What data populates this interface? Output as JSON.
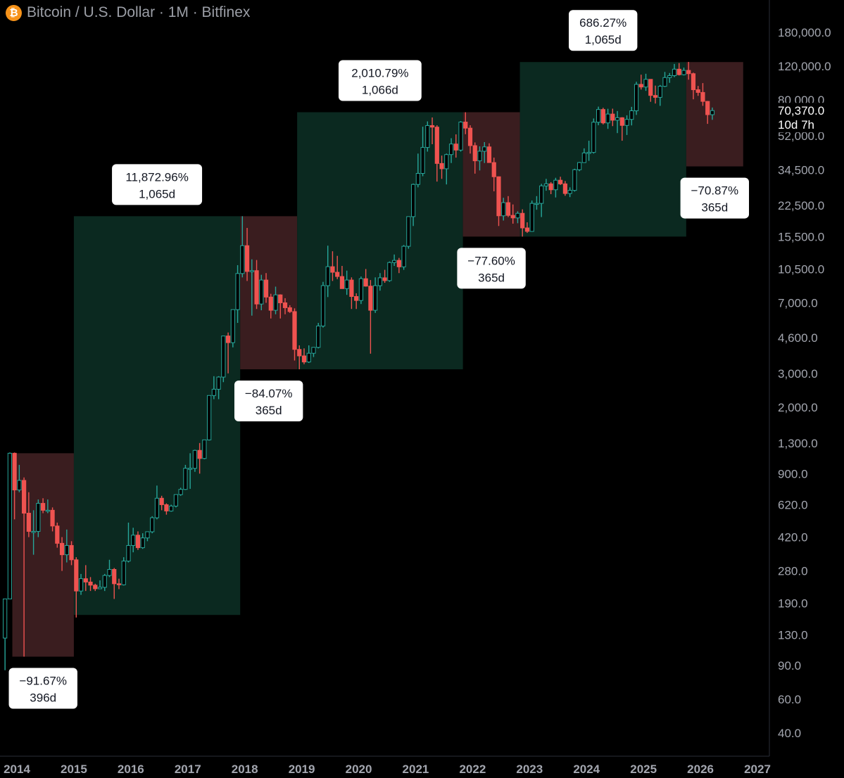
{
  "header": {
    "logo_icon": "bitcoin-logo-icon",
    "logo_glyph": "₿",
    "title": "Bitcoin / U.S. Dollar · 1M · Bitfinex"
  },
  "price_label": {
    "price": "70,370.0",
    "countdown": "10d 7h",
    "color": "#26a69a"
  },
  "colors": {
    "up": "#26a69a",
    "down": "#ef5350",
    "bull_zone": "#0b2920",
    "bear_zone": "#3a1d1f",
    "axis_text": "#a3a6af",
    "axis_line": "#2a2e39"
  },
  "chart_data": {
    "type": "candlestick",
    "scale": "log",
    "title": "Bitcoin / U.S. Dollar · 1M · Bitfinex",
    "x_range": [
      2014.0,
      2027.0
    ],
    "y_range": [
      32,
      230000
    ],
    "x_ticks": [
      {
        "value": 2014,
        "label": "2014"
      },
      {
        "value": 2015,
        "label": "2015"
      },
      {
        "value": 2016,
        "label": "2016"
      },
      {
        "value": 2017,
        "label": "2017"
      },
      {
        "value": 2018,
        "label": "2018"
      },
      {
        "value": 2019,
        "label": "2019"
      },
      {
        "value": 2020,
        "label": "2020"
      },
      {
        "value": 2021,
        "label": "2021"
      },
      {
        "value": 2022,
        "label": "2022"
      },
      {
        "value": 2023,
        "label": "2023"
      },
      {
        "value": 2024,
        "label": "2024"
      },
      {
        "value": 2025,
        "label": "2025"
      },
      {
        "value": 2026,
        "label": "2026"
      },
      {
        "value": 2027,
        "label": "2027"
      }
    ],
    "y_ticks": [
      {
        "value": 180000,
        "label": "180,000.0"
      },
      {
        "value": 120000,
        "label": "120,000.0"
      },
      {
        "value": 80000,
        "label": "80,000.0"
      },
      {
        "value": 52000,
        "label": "52,000.0"
      },
      {
        "value": 34500,
        "label": "34,500.0"
      },
      {
        "value": 22500,
        "label": "22,500.0"
      },
      {
        "value": 15500,
        "label": "15,500.0"
      },
      {
        "value": 10500,
        "label": "10,500.0"
      },
      {
        "value": 7000,
        "label": "7,000.0"
      },
      {
        "value": 4600,
        "label": "4,600.0"
      },
      {
        "value": 3000,
        "label": "3,000.0"
      },
      {
        "value": 2000,
        "label": "2,000.0"
      },
      {
        "value": 1300,
        "label": "1,300.0"
      },
      {
        "value": 900,
        "label": "900.0"
      },
      {
        "value": 620,
        "label": "620.0"
      },
      {
        "value": 420,
        "label": "420.0"
      },
      {
        "value": 280,
        "label": "280.0"
      },
      {
        "value": 190,
        "label": "190.0"
      },
      {
        "value": 130,
        "label": "130.0"
      },
      {
        "value": 90,
        "label": "90.0"
      },
      {
        "value": 60,
        "label": "60.0"
      },
      {
        "value": 40,
        "label": "40.0"
      }
    ],
    "zones": [
      {
        "kind": "bear",
        "x0": 2013.92,
        "x1": 2015.0,
        "y_high": 1150,
        "y_low": 100,
        "pct": "−91.67%",
        "days": "396d",
        "label_side": "below"
      },
      {
        "kind": "bull",
        "x0": 2015.0,
        "x1": 2017.92,
        "y_high": 19800,
        "y_low": 165,
        "pct": "11,872.96%",
        "days": "1,065d",
        "label_side": "above"
      },
      {
        "kind": "bear",
        "x0": 2017.92,
        "x1": 2018.92,
        "y_high": 19800,
        "y_low": 3150,
        "pct": "−84.07%",
        "days": "365d",
        "label_side": "below"
      },
      {
        "kind": "bull",
        "x0": 2018.92,
        "x1": 2021.83,
        "y_high": 69000,
        "y_low": 3150,
        "pct": "2,010.79%",
        "days": "1,066d",
        "label_side": "above"
      },
      {
        "kind": "bear",
        "x0": 2021.83,
        "x1": 2022.83,
        "y_high": 69000,
        "y_low": 15500,
        "pct": "−77.60%",
        "days": "365d",
        "label_side": "below"
      },
      {
        "kind": "bull",
        "x0": 2022.83,
        "x1": 2025.75,
        "y_high": 126000,
        "y_low": 15500,
        "pct": "686.27%",
        "days": "1,065d",
        "label_side": "above"
      },
      {
        "kind": "bear",
        "x0": 2025.75,
        "x1": 2026.75,
        "y_high": 126000,
        "y_low": 36000,
        "pct": "−70.87%",
        "days": "365d",
        "label_side": "below"
      }
    ],
    "candles_note": "monthly OHLC [open, high, low, close], consecutive months",
    "candles_start": [
      2013,
      10
    ],
    "candles": [
      [
        125,
        200,
        85,
        200
      ],
      [
        200,
        1160,
        200,
        1150
      ],
      [
        1150,
        1160,
        520,
        740
      ],
      [
        740,
        1000,
        720,
        830
      ],
      [
        830,
        860,
        100,
        560
      ],
      [
        560,
        720,
        420,
        450
      ],
      [
        450,
        580,
        340,
        450
      ],
      [
        450,
        660,
        420,
        630
      ],
      [
        630,
        670,
        560,
        580
      ],
      [
        580,
        660,
        560,
        580
      ],
      [
        580,
        600,
        450,
        480
      ],
      [
        480,
        500,
        370,
        390
      ],
      [
        390,
        420,
        280,
        340
      ],
      [
        340,
        460,
        310,
        380
      ],
      [
        380,
        400,
        300,
        320
      ],
      [
        320,
        330,
        160,
        220
      ],
      [
        220,
        270,
        210,
        255
      ],
      [
        255,
        300,
        220,
        245
      ],
      [
        245,
        260,
        220,
        236
      ],
      [
        236,
        240,
        220,
        226
      ],
      [
        226,
        250,
        225,
        230
      ],
      [
        230,
        270,
        220,
        265
      ],
      [
        265,
        320,
        260,
        285
      ],
      [
        285,
        290,
        200,
        240
      ],
      [
        240,
        255,
        225,
        237
      ],
      [
        237,
        330,
        235,
        315
      ],
      [
        315,
        500,
        310,
        380
      ],
      [
        380,
        470,
        350,
        430
      ],
      [
        430,
        450,
        360,
        370
      ],
      [
        370,
        440,
        365,
        416
      ],
      [
        416,
        420,
        400,
        448
      ],
      [
        448,
        540,
        440,
        530
      ],
      [
        530,
        780,
        520,
        670
      ],
      [
        670,
        690,
        580,
        620
      ],
      [
        620,
        630,
        550,
        575
      ],
      [
        575,
        620,
        570,
        610
      ],
      [
        610,
        700,
        600,
        700
      ],
      [
        700,
        760,
        690,
        745
      ],
      [
        745,
        1000,
        740,
        960
      ],
      [
        960,
        1150,
        750,
        960
      ],
      [
        960,
        1200,
        920,
        1190
      ],
      [
        1190,
        1300,
        900,
        1080
      ],
      [
        1080,
        1300,
        1070,
        1350
      ],
      [
        1350,
        2000,
        1340,
        2300
      ],
      [
        2300,
        2900,
        2200,
        2480
      ],
      [
        2480,
        2900,
        2200,
        2870
      ],
      [
        2870,
        4500,
        2700,
        4700
      ],
      [
        4700,
        4900,
        3000,
        4340
      ],
      [
        4340,
        6400,
        4100,
        6450
      ],
      [
        6450,
        11000,
        5500,
        9950
      ],
      [
        9950,
        19800,
        9500,
        13900
      ],
      [
        13900,
        17200,
        9100,
        10200
      ],
      [
        10200,
        11800,
        6000,
        10300
      ],
      [
        10300,
        11700,
        6500,
        6900
      ],
      [
        6900,
        9800,
        6400,
        9200
      ],
      [
        9200,
        10000,
        7000,
        7500
      ],
      [
        7500,
        7800,
        5800,
        6400
      ],
      [
        6400,
        8500,
        6100,
        7700
      ],
      [
        7700,
        7750,
        5800,
        7000
      ],
      [
        7000,
        7400,
        6100,
        6600
      ],
      [
        6600,
        6800,
        6200,
        6300
      ],
      [
        6300,
        6550,
        3500,
        4000
      ],
      [
        4000,
        4200,
        3150,
        3700
      ],
      [
        3700,
        4050,
        3350,
        3440
      ],
      [
        3440,
        4200,
        3400,
        3820
      ],
      [
        3820,
        4100,
        3650,
        4100
      ],
      [
        4100,
        5500,
        4050,
        5300
      ],
      [
        5300,
        9000,
        5200,
        8600
      ],
      [
        8600,
        13900,
        7500,
        10800
      ],
      [
        10800,
        13000,
        9100,
        10100
      ],
      [
        10100,
        12300,
        9300,
        9600
      ],
      [
        9600,
        10900,
        9300,
        8300
      ],
      [
        8300,
        10300,
        7700,
        9200
      ],
      [
        9200,
        9500,
        6500,
        7550
      ],
      [
        7550,
        7850,
        6500,
        7200
      ],
      [
        7200,
        9600,
        6900,
        9350
      ],
      [
        9350,
        10500,
        8500,
        8550
      ],
      [
        8550,
        9200,
        3800,
        6400
      ],
      [
        6400,
        9500,
        6200,
        8600
      ],
      [
        8600,
        10000,
        8100,
        9450
      ],
      [
        9450,
        10400,
        8900,
        9140
      ],
      [
        9140,
        11500,
        9000,
        11350
      ],
      [
        11350,
        12500,
        10900,
        11650
      ],
      [
        11650,
        12000,
        10000,
        10780
      ],
      [
        10780,
        14000,
        10400,
        13800
      ],
      [
        13800,
        19500,
        13400,
        19700
      ],
      [
        19700,
        29300,
        17600,
        29000
      ],
      [
        29000,
        42000,
        28000,
        33100
      ],
      [
        33100,
        58000,
        32000,
        45200
      ],
      [
        45200,
        61800,
        43000,
        58800
      ],
      [
        58800,
        64800,
        47000,
        57700
      ],
      [
        57700,
        59000,
        30000,
        37300
      ],
      [
        37300,
        41000,
        31000,
        35000
      ],
      [
        35000,
        42000,
        29000,
        41500
      ],
      [
        41500,
        50500,
        37500,
        47100
      ],
      [
        47100,
        52900,
        40000,
        43800
      ],
      [
        43800,
        62000,
        43000,
        61300
      ],
      [
        61300,
        69000,
        53000,
        57000
      ],
      [
        57000,
        59000,
        42000,
        46200
      ],
      [
        46200,
        48000,
        33000,
        38500
      ],
      [
        38500,
        45800,
        34300,
        43200
      ],
      [
        43200,
        48200,
        37500,
        45500
      ],
      [
        45500,
        47500,
        37600,
        37700
      ],
      [
        37700,
        40000,
        26700,
        31800
      ],
      [
        31800,
        31900,
        17600,
        19900
      ],
      [
        19900,
        24700,
        18800,
        23300
      ],
      [
        23300,
        25200,
        19600,
        20000
      ],
      [
        20000,
        22800,
        18100,
        19400
      ],
      [
        19400,
        21000,
        18200,
        20500
      ],
      [
        20500,
        21500,
        15500,
        17200
      ],
      [
        17200,
        18400,
        16200,
        16500
      ],
      [
        16500,
        23900,
        16500,
        23100
      ],
      [
        23100,
        25200,
        21400,
        23100
      ],
      [
        23100,
        29200,
        19600,
        28500
      ],
      [
        28500,
        31000,
        26900,
        29200
      ],
      [
        29200,
        29800,
        25800,
        27200
      ],
      [
        27200,
        31400,
        24800,
        30500
      ],
      [
        30500,
        31800,
        28800,
        29200
      ],
      [
        29200,
        30200,
        25300,
        26000
      ],
      [
        26000,
        28000,
        24900,
        27000
      ],
      [
        27000,
        35000,
        26600,
        34600
      ],
      [
        34600,
        38000,
        34000,
        37700
      ],
      [
        37700,
        44700,
        37600,
        42300
      ],
      [
        42300,
        49000,
        38500,
        42600
      ],
      [
        42600,
        64000,
        42000,
        61200
      ],
      [
        61200,
        73800,
        59000,
        71300
      ],
      [
        71300,
        72800,
        59600,
        60700
      ],
      [
        60700,
        71900,
        56500,
        67500
      ],
      [
        67500,
        72000,
        58400,
        62700
      ],
      [
        62700,
        70000,
        53700,
        64600
      ],
      [
        64600,
        65000,
        49000,
        58900
      ],
      [
        58900,
        66500,
        52500,
        63300
      ],
      [
        63300,
        73600,
        58900,
        70200
      ],
      [
        70200,
        99500,
        66800,
        96400
      ],
      [
        96400,
        108300,
        90600,
        93400
      ],
      [
        93400,
        109500,
        89200,
        102400
      ],
      [
        102400,
        102500,
        78200,
        84400
      ],
      [
        84400,
        95000,
        76600,
        82500
      ],
      [
        82500,
        95700,
        74500,
        94200
      ],
      [
        94200,
        111900,
        93400,
        104600
      ],
      [
        104600,
        110500,
        98200,
        107100
      ],
      [
        107100,
        123200,
        105100,
        115700
      ],
      [
        115700,
        124500,
        107300,
        108300
      ],
      [
        108300,
        117900,
        107300,
        114000
      ],
      [
        114000,
        126200,
        102000,
        109600
      ],
      [
        109600,
        111000,
        80600,
        90400
      ],
      [
        90400,
        94600,
        84000,
        87500
      ],
      [
        87500,
        97900,
        74500,
        78600
      ],
      [
        78600,
        79000,
        60000,
        67000
      ],
      [
        67000,
        73000,
        63000,
        70370
      ]
    ]
  }
}
